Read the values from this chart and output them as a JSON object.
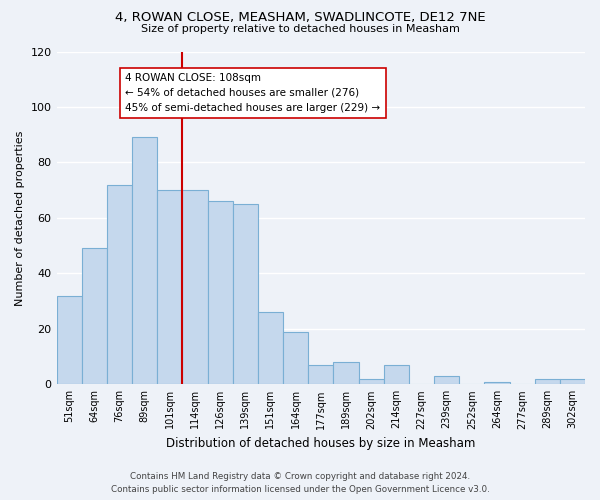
{
  "title1": "4, ROWAN CLOSE, MEASHAM, SWADLINCOTE, DE12 7NE",
  "title2": "Size of property relative to detached houses in Measham",
  "xlabel": "Distribution of detached houses by size in Measham",
  "ylabel": "Number of detached properties",
  "bar_labels": [
    "51sqm",
    "64sqm",
    "76sqm",
    "89sqm",
    "101sqm",
    "114sqm",
    "126sqm",
    "139sqm",
    "151sqm",
    "164sqm",
    "177sqm",
    "189sqm",
    "202sqm",
    "214sqm",
    "227sqm",
    "239sqm",
    "252sqm",
    "264sqm",
    "277sqm",
    "289sqm",
    "302sqm"
  ],
  "bar_heights": [
    32,
    49,
    72,
    89,
    70,
    70,
    66,
    65,
    26,
    19,
    7,
    8,
    2,
    7,
    0,
    3,
    0,
    1,
    0,
    2,
    2
  ],
  "bar_color": "#c5d8ed",
  "bar_edge_color": "#7aafd4",
  "vline_color": "#cc0000",
  "annotation_title": "4 ROWAN CLOSE: 108sqm",
  "annotation_line1": "← 54% of detached houses are smaller (276)",
  "annotation_line2": "45% of semi-detached houses are larger (229) →",
  "annotation_box_color": "#ffffff",
  "annotation_box_edge": "#cc0000",
  "ylim": [
    0,
    120
  ],
  "yticks": [
    0,
    20,
    40,
    60,
    80,
    100,
    120
  ],
  "footnote1": "Contains HM Land Registry data © Crown copyright and database right 2024.",
  "footnote2": "Contains public sector information licensed under the Open Government Licence v3.0.",
  "bg_color": "#eef2f8"
}
